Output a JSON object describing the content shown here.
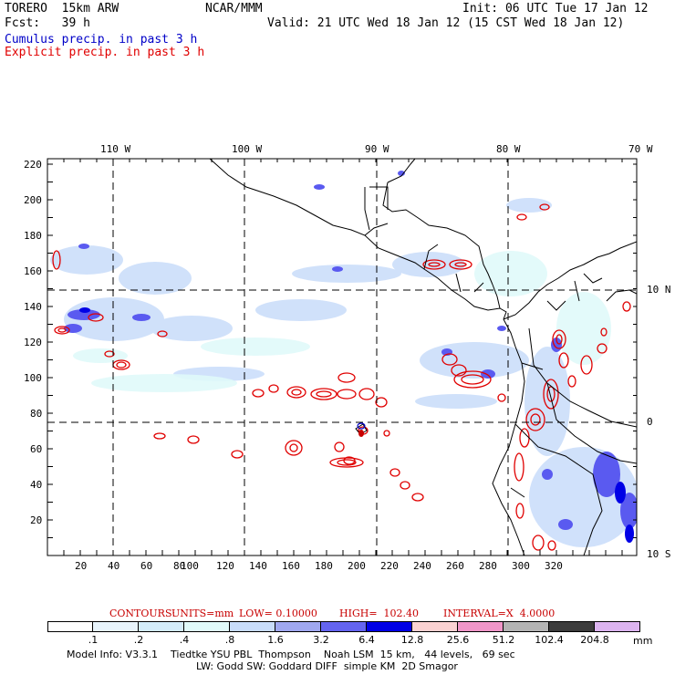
{
  "header": {
    "model": "TORERO  15km ARW",
    "org": "NCAR/MMM",
    "init": "Init: 06 UTC Tue 17 Jan 12",
    "fcst": "Fcst:   39 h",
    "valid": "Valid: 21 UTC Wed 18 Jan 12 (15 CST Wed 18 Jan 12)",
    "cumulus": "Cumulus precip. in past 3 h",
    "explicit": "Explicit precip. in past 3 h"
  },
  "axes": {
    "lon_labels": [
      "110 W",
      "100 W",
      "90 W",
      "80 W",
      "70 W"
    ],
    "lat_labels": [
      "10 N",
      "0",
      "10 S"
    ],
    "x_ticks": [
      "20",
      "40",
      "60",
      "80",
      "100",
      "120",
      "140",
      "160",
      "180",
      "200",
      "220",
      "240",
      "260",
      "280",
      "300",
      "320"
    ],
    "y_ticks": [
      "220",
      "200",
      "180",
      "160",
      "140",
      "120",
      "100",
      "80",
      "60",
      "40",
      "20"
    ]
  },
  "contours": {
    "label": "CONTOURS:",
    "units": "UNITS=mm",
    "low": "LOW= 0.10000",
    "high": "HIGH=  102.40",
    "interval": "INTERVAL=X  4.0000"
  },
  "colorbar": {
    "unit": "mm",
    "levels": [
      ".1",
      ".2",
      ".4",
      ".8",
      "1.6",
      "3.2",
      "6.4",
      "12.8",
      "25.6",
      "51.2",
      "102.4",
      "204.8"
    ],
    "colors": [
      "#ffffff",
      "#e8f4fc",
      "#d4ecfa",
      "#e0fafa",
      "#c8dcfa",
      "#a0a8f0",
      "#6464f0",
      "#0000e6",
      "#fad2d2",
      "#f096c8",
      "#b4b4b4",
      "#3c3c3c",
      "#dcb4f0"
    ]
  },
  "footer": {
    "line1": "Model Info: V3.3.1    Tiedtke YSU PBL  Thompson    Noah LSM  15 km,   44 levels,   69 sec",
    "line2": "LW: Godd SW: Goddard DIFF  simple KM  2D Smagor"
  }
}
